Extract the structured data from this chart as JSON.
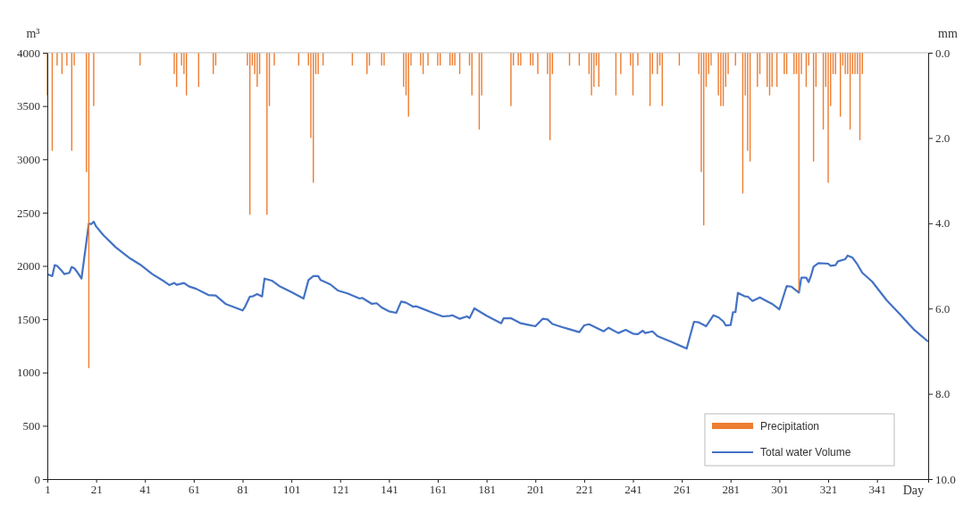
{
  "chart_data": {
    "type": "line",
    "xlabel": "Day",
    "ylabel": "m³",
    "y2label": "mm",
    "xlim": [
      1,
      362
    ],
    "xticks": [
      1,
      21,
      41,
      61,
      81,
      101,
      121,
      141,
      161,
      181,
      201,
      221,
      241,
      261,
      281,
      301,
      321,
      341
    ],
    "ylim": [
      0,
      4000
    ],
    "yticks": [
      0,
      500,
      1000,
      1500,
      2000,
      2500,
      3000,
      3500,
      4000
    ],
    "y2lim": [
      10,
      0
    ],
    "y2ticks": [
      {
        "value": 0,
        "label": "0.0"
      },
      {
        "value": 2,
        "label": "2.0"
      },
      {
        "value": 4,
        "label": "4.0"
      },
      {
        "value": 6,
        "label": "6.0"
      },
      {
        "value": 8,
        "label": "8.0"
      },
      {
        "value": 10,
        "label": "10.0"
      }
    ],
    "legend": "bottom right",
    "series": [
      {
        "name": "Precipitation",
        "type": "bar",
        "axis": "y2",
        "color": "#ed7d31",
        "x": [
          1,
          3,
          5,
          7,
          9,
          11,
          12,
          17,
          18,
          20,
          39,
          53,
          54,
          56,
          57,
          58,
          63,
          69,
          70,
          83,
          84,
          85,
          86,
          87,
          88,
          91,
          92,
          94,
          104,
          108,
          109,
          110,
          111,
          112,
          114,
          126,
          132,
          133,
          138,
          139,
          147,
          148,
          149,
          150,
          154,
          155,
          157,
          161,
          162,
          166,
          167,
          168,
          170,
          174,
          175,
          178,
          179,
          191,
          192,
          194,
          195,
          199,
          200,
          202,
          206,
          207,
          208,
          215,
          219,
          223,
          224,
          225,
          226,
          227,
          234,
          236,
          240,
          241,
          243,
          248,
          249,
          251,
          252,
          253,
          260,
          268,
          269,
          270,
          271,
          272,
          273,
          276,
          277,
          278,
          279,
          280,
          283,
          286,
          287,
          288,
          289,
          292,
          293,
          296,
          297,
          298,
          300,
          303,
          304,
          307,
          308,
          309,
          310,
          312,
          313,
          315,
          316,
          319,
          320,
          321,
          322,
          323,
          324,
          326,
          327,
          328,
          329,
          330,
          331,
          332,
          333,
          334,
          335
        ],
        "values": [
          1.0,
          2.3,
          0.3,
          0.5,
          0.3,
          2.3,
          0.3,
          2.8,
          7.4,
          1.25,
          0.3,
          0.5,
          0.8,
          0.3,
          0.5,
          1.0,
          0.8,
          0.5,
          0.3,
          0.3,
          3.8,
          0.3,
          0.5,
          0.8,
          0.5,
          3.8,
          1.25,
          0.3,
          0.3,
          0.3,
          2.0,
          3.05,
          0.5,
          0.5,
          0.3,
          0.3,
          0.5,
          0.3,
          0.3,
          0.3,
          0.8,
          1.0,
          1.5,
          0.3,
          0.3,
          0.5,
          0.3,
          0.3,
          0.3,
          0.3,
          0.3,
          0.3,
          0.5,
          0.3,
          1.0,
          1.8,
          1.0,
          1.25,
          0.3,
          0.3,
          0.3,
          0.3,
          0.3,
          0.5,
          0.5,
          2.05,
          0.5,
          0.3,
          0.3,
          0.5,
          1.0,
          0.8,
          0.3,
          0.8,
          1.0,
          0.5,
          0.3,
          1.0,
          0.3,
          1.25,
          0.5,
          0.5,
          0.3,
          1.25,
          0.3,
          0.5,
          2.8,
          4.05,
          0.8,
          0.5,
          0.3,
          1.0,
          1.25,
          1.25,
          0.8,
          0.5,
          0.3,
          3.3,
          1.0,
          2.3,
          2.55,
          0.8,
          0.5,
          0.8,
          1.0,
          0.8,
          0.8,
          0.5,
          0.5,
          0.5,
          0.5,
          5.6,
          0.5,
          0.8,
          0.3,
          2.55,
          0.8,
          1.8,
          0.8,
          3.05,
          1.25,
          0.5,
          0.5,
          1.5,
          0.3,
          0.5,
          0.5,
          1.8,
          0.5,
          0.5,
          0.5,
          2.05,
          0.5
        ]
      },
      {
        "name": "Total water Volume",
        "color": "#4472c4",
        "x": [
          1,
          3,
          4,
          5,
          7,
          8,
          10,
          11,
          12,
          13,
          15,
          18,
          19,
          20,
          21,
          24,
          29,
          35,
          39,
          44,
          49,
          51,
          53,
          54,
          57,
          59,
          62,
          67,
          70,
          74,
          81,
          82,
          84,
          85,
          87,
          89,
          90,
          93,
          96,
          101,
          106,
          108,
          110,
          112,
          113,
          117,
          120,
          124,
          129,
          130,
          134,
          136,
          138,
          141,
          144,
          146,
          148,
          151,
          152,
          154,
          159,
          163,
          166,
          167,
          170,
          173,
          174,
          176,
          181,
          187,
          188,
          191,
          195,
          198,
          201,
          204,
          206,
          208,
          212,
          215,
          219,
          221,
          223,
          229,
          231,
          235,
          238,
          241,
          243,
          245,
          246,
          249,
          251,
          257,
          263,
          266,
          268,
          271,
          274,
          276,
          278,
          279,
          281,
          282,
          283,
          284,
          287,
          288,
          290,
          293,
          295,
          298,
          301,
          304,
          306,
          307,
          309,
          310,
          312,
          313,
          314,
          315,
          317,
          321,
          322,
          324,
          325,
          328,
          329,
          331,
          333,
          335,
          339,
          345,
          351,
          356,
          362
        ],
        "values": [
          1923,
          1904,
          2007,
          2000,
          1951,
          1923,
          1935,
          1990,
          1980,
          1950,
          1881,
          2398,
          2392,
          2415,
          2370,
          2287,
          2175,
          2069,
          2013,
          1923,
          1853,
          1820,
          1840,
          1823,
          1840,
          1808,
          1785,
          1727,
          1722,
          1644,
          1582,
          1616,
          1713,
          1713,
          1736,
          1713,
          1881,
          1862,
          1812,
          1755,
          1694,
          1867,
          1904,
          1904,
          1867,
          1826,
          1770,
          1742,
          1694,
          1700,
          1644,
          1650,
          1610,
          1574,
          1560,
          1666,
          1655,
          1616,
          1622,
          1605,
          1560,
          1526,
          1532,
          1537,
          1504,
          1526,
          1510,
          1602,
          1532,
          1462,
          1509,
          1509,
          1462,
          1448,
          1434,
          1504,
          1498,
          1455,
          1426,
          1406,
          1378,
          1442,
          1453,
          1386,
          1420,
          1370,
          1400,
          1364,
          1359,
          1392,
          1370,
          1386,
          1342,
          1286,
          1224,
          1476,
          1470,
          1434,
          1537,
          1518,
          1480,
          1442,
          1445,
          1566,
          1566,
          1747,
          1713,
          1713,
          1671,
          1705,
          1680,
          1644,
          1593,
          1811,
          1805,
          1785,
          1750,
          1890,
          1890,
          1848,
          1910,
          1993,
          2027,
          2021,
          2001,
          2007,
          2043,
          2063,
          2097,
          2077,
          2013,
          1935,
          1853,
          1677,
          1532,
          1406,
          1289
        ]
      }
    ]
  }
}
